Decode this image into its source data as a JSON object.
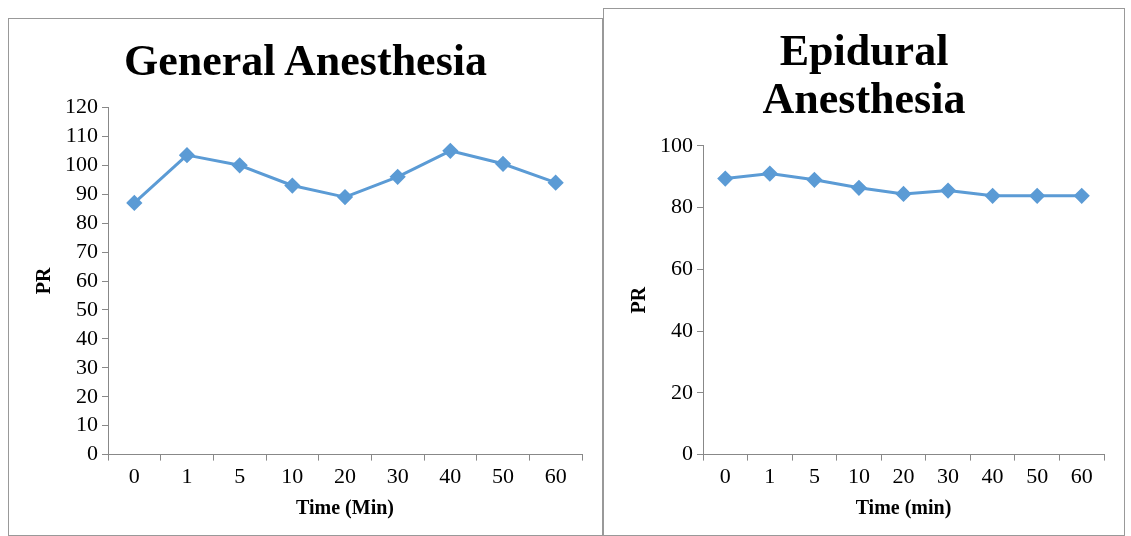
{
  "chart_data": [
    {
      "type": "line",
      "title": "General Anesthesia",
      "xlabel": "Time (Min)",
      "ylabel": "PR",
      "categories": [
        "0",
        "1",
        "5",
        "10",
        "20",
        "30",
        "40",
        "50",
        "60"
      ],
      "series": [
        {
          "color": "#5b9bd5",
          "values": [
            87,
            103.5,
            100,
            93,
            89,
            96,
            105,
            100.5,
            94
          ]
        }
      ],
      "ylim": [
        0,
        120
      ],
      "yticks": [
        0,
        10,
        20,
        30,
        40,
        50,
        60,
        70,
        80,
        90,
        100,
        110,
        120
      ],
      "marker": "diamond"
    },
    {
      "type": "line",
      "title": "Epidural Anesthesia",
      "xlabel": "Time (min)",
      "ylabel": "PR",
      "categories": [
        "0",
        "1",
        "5",
        "10",
        "20",
        "30",
        "40",
        "50",
        "60"
      ],
      "series": [
        {
          "color": "#5b9bd5",
          "values": [
            89.4,
            91,
            89,
            86.4,
            84.4,
            85.5,
            83.8,
            83.8,
            83.8
          ]
        }
      ],
      "ylim": [
        0,
        100
      ],
      "yticks": [
        0,
        20,
        40,
        60,
        80,
        100
      ],
      "marker": "diamond"
    }
  ]
}
